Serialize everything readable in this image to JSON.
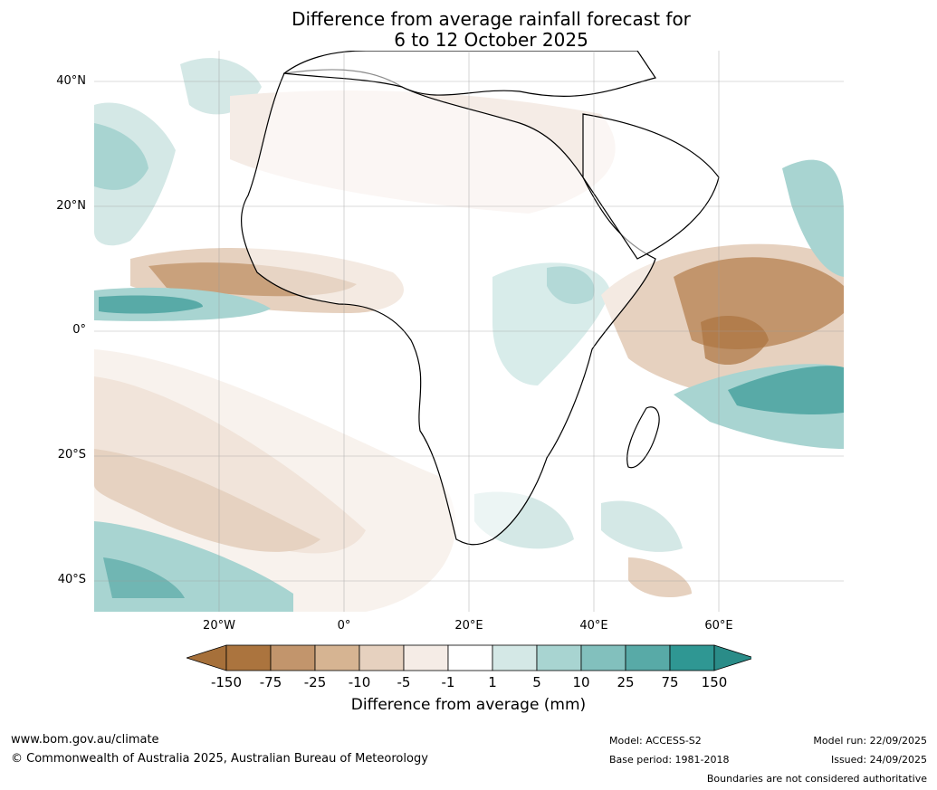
{
  "title": {
    "line1": "Difference from average rainfall forecast for",
    "line2": "6 to 12 October 2025"
  },
  "map": {
    "lat_labels": [
      "40°N",
      "20°N",
      "0°",
      "20°S",
      "40°S"
    ],
    "lon_labels": [
      "20°W",
      "0°",
      "20°E",
      "40°E",
      "60°E"
    ],
    "extent": {
      "lon_min": -40,
      "lon_max": 80,
      "lat_min": -45,
      "lat_max": 45
    }
  },
  "legend": {
    "title": "Difference from average (mm)",
    "ticks": [
      "-150",
      "-75",
      "-25",
      "-10",
      "-5",
      "-1",
      "1",
      "5",
      "10",
      "25",
      "75",
      "150"
    ],
    "colors": [
      "#a6703a",
      "#ab743e",
      "#c2956c",
      "#d6b492",
      "#e6d1bf",
      "#f5ece6",
      "#ffffff",
      "#d4e8e6",
      "#a8d4d1",
      "#82c0bd",
      "#58aaa7",
      "#2f9793",
      "#2a8c88"
    ]
  },
  "footer": {
    "website": "www.bom.gov.au/climate",
    "copyright": "© Commonwealth of Australia 2025, Australian Bureau of Meteorology",
    "model": "Model: ACCESS-S2",
    "base_period": "Base period: 1981-2018",
    "model_run": "Model run: 22/09/2025",
    "issued": "Issued: 24/09/2025",
    "disclaimer": "Boundaries are not considered authoritative"
  }
}
